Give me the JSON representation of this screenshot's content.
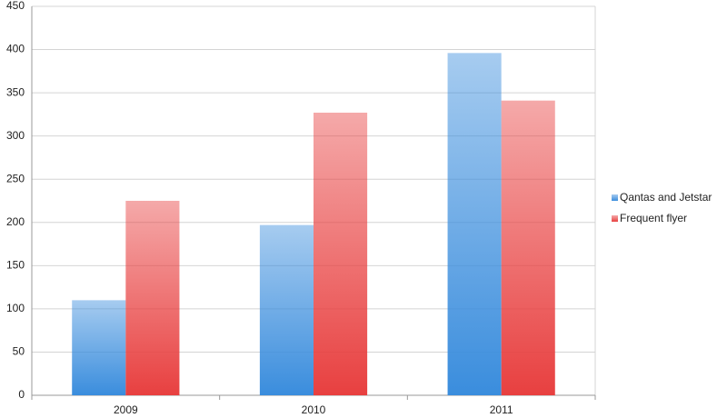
{
  "chart_data": {
    "type": "bar",
    "categories": [
      "2009",
      "2010",
      "2011"
    ],
    "series": [
      {
        "name": "Qantas and Jetstar",
        "color": "#3a8ddd",
        "values": [
          110,
          197,
          396
        ]
      },
      {
        "name": "Frequent flyer",
        "color": "#e84040",
        "values": [
          225,
          327,
          341
        ]
      }
    ],
    "ylim": [
      0,
      450
    ],
    "yticks": [
      0,
      50,
      100,
      150,
      200,
      250,
      300,
      350,
      400,
      450
    ],
    "grid": true,
    "legend": "right"
  }
}
